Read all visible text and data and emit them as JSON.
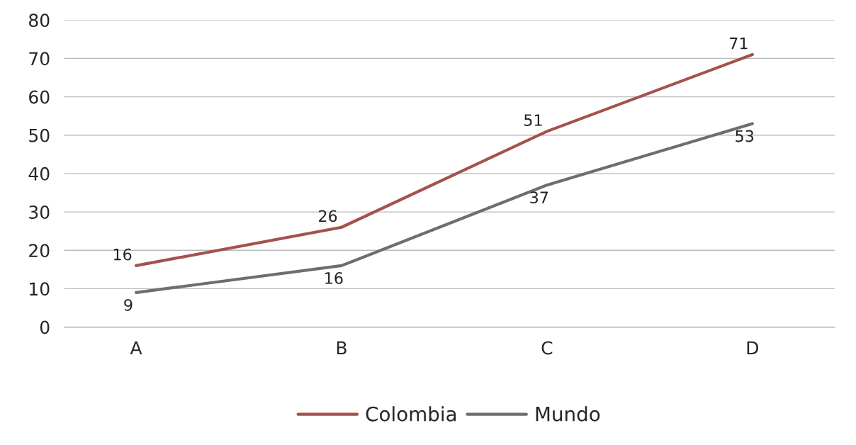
{
  "chart_data": {
    "type": "line",
    "categories": [
      "A",
      "B",
      "C",
      "D"
    ],
    "series": [
      {
        "name": "Colombia",
        "color": "#a3524d",
        "values": [
          16,
          26,
          51,
          71
        ]
      },
      {
        "name": "Mundo",
        "color": "#6e6e6e",
        "values": [
          9,
          16,
          37,
          53
        ]
      }
    ],
    "ylim": [
      0,
      80
    ],
    "yticks": [
      0,
      10,
      20,
      30,
      40,
      50,
      60,
      70,
      80
    ],
    "grid": "y",
    "legend": "bottom",
    "data_labels": true,
    "marker": "none",
    "line_style": "solid"
  }
}
